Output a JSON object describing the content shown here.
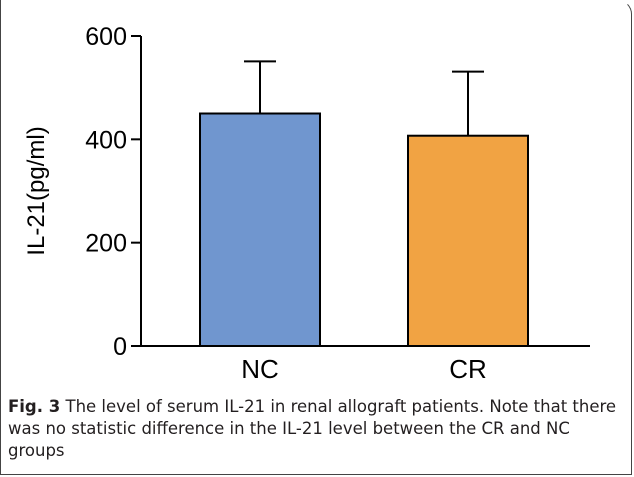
{
  "chart_data": {
    "type": "bar",
    "title": "",
    "xlabel": "",
    "ylabel": "IL-21(pg/ml)",
    "ylim": [
      0,
      600
    ],
    "yticks": [
      "0",
      "200",
      "400",
      "600"
    ],
    "categories": [
      "NC",
      "CR"
    ],
    "values": [
      450,
      407
    ],
    "error_upper": [
      551,
      531
    ],
    "grid": false,
    "bar_colors": [
      "#7096cf",
      "#f1a343"
    ],
    "axis_color": "#000000"
  },
  "caption": {
    "label": "Fig. 3",
    "text": "The level of serum IL-21 in renal allograft patients. Note that there was no statistic difference in the IL-21 level between the CR and NC groups"
  }
}
